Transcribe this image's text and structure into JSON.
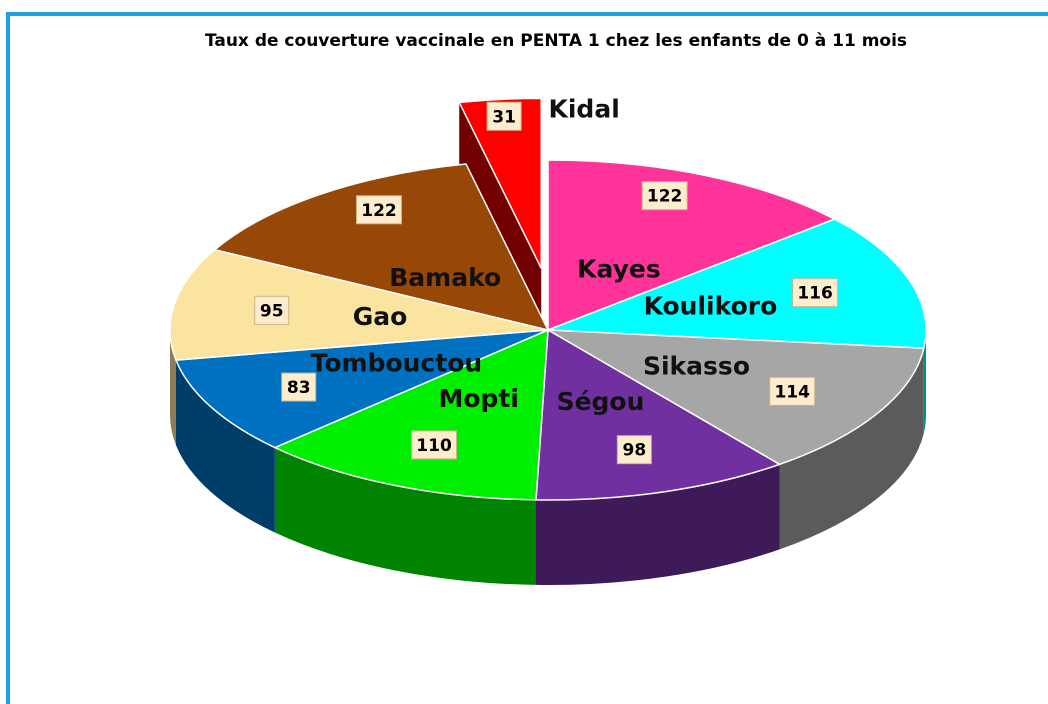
{
  "chart_data": {
    "type": "pie",
    "title": "Taux de couverture  vaccinale en PENTA 1 chez les enfants de 0 à 11 mois",
    "categories": [
      "Kayes",
      "Koulikoro",
      "Sikasso",
      "Ségou",
      "Mopti",
      "Tombouctou",
      "Gao",
      "Bamako",
      "Kidal"
    ],
    "values": [
      122,
      116,
      114,
      98,
      110,
      83,
      95,
      122,
      31
    ],
    "colors": [
      "#ff3399",
      "#00ffff",
      "#a6a6a6",
      "#7030a0",
      "#00ee00",
      "#0070c0",
      "#fbe3a0",
      "#974706",
      "#ff0000"
    ]
  }
}
